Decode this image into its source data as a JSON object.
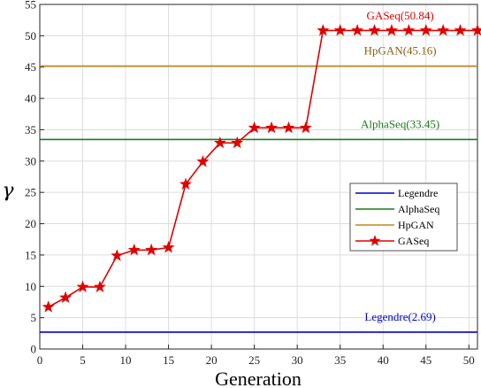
{
  "chart_data": {
    "type": "line",
    "xlabel": "Generation",
    "ylabel": "γ",
    "xlim": [
      0,
      51
    ],
    "ylim": [
      0,
      55
    ],
    "x_ticks": [
      0,
      5,
      10,
      15,
      20,
      25,
      30,
      35,
      40,
      45,
      50
    ],
    "y_ticks": [
      0,
      5,
      10,
      15,
      20,
      25,
      30,
      35,
      40,
      45,
      50,
      55
    ],
    "grid": true,
    "legend_position": "right",
    "series": [
      {
        "name": "Legendre",
        "color": "#0000cc",
        "kind": "constant",
        "value": 2.69
      },
      {
        "name": "AlphaSeq",
        "color": "#1a7a1a",
        "kind": "constant",
        "value": 33.45
      },
      {
        "name": "HpGAN",
        "color": "#c08a1a",
        "kind": "constant",
        "value": 45.16
      },
      {
        "name": "GASeq",
        "color": "#e00000",
        "kind": "line-star",
        "x": [
          1,
          3,
          5,
          7,
          9,
          11,
          13,
          15,
          17,
          19,
          21,
          23,
          25,
          27,
          29,
          31,
          33,
          35,
          37,
          39,
          41,
          43,
          45,
          47,
          49,
          51
        ],
        "y": [
          6.7,
          8.2,
          9.9,
          9.9,
          14.9,
          15.8,
          15.8,
          16.2,
          26.3,
          29.9,
          32.9,
          32.9,
          35.3,
          35.3,
          35.3,
          35.3,
          50.84,
          50.84,
          50.84,
          50.84,
          50.84,
          50.84,
          50.84,
          50.84,
          50.84,
          50.84
        ]
      }
    ],
    "annotations": [
      {
        "text": "GASeq(50.84)",
        "color": "#e00000",
        "x": 42,
        "y": 52.6
      },
      {
        "text": "HpGAN(45.16)",
        "color": "#8a6010",
        "x": 42,
        "y": 47.0
      },
      {
        "text": "AlphaSeq(33.45)",
        "color": "#1a7a1a",
        "x": 42,
        "y": 35.3
      },
      {
        "text": "Legendre(2.69)",
        "color": "#0000cc",
        "x": 42,
        "y": 4.5
      }
    ]
  }
}
